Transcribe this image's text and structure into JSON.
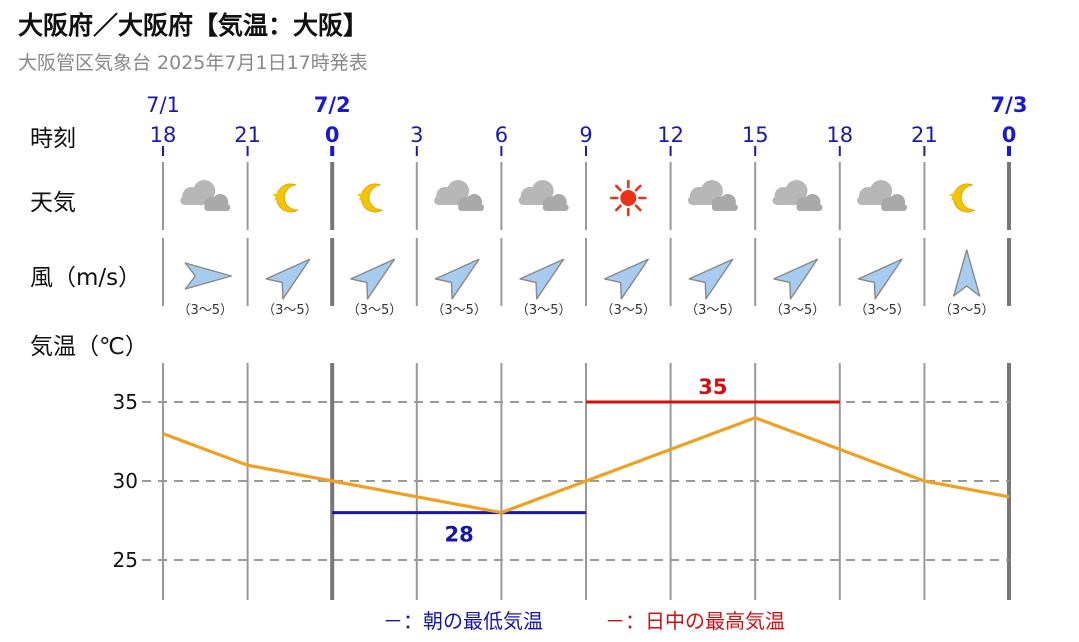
{
  "header": {
    "title": "大阪府／大阪府【気温：大阪】",
    "subtitle": "大阪管区気象台 2025年7月1日17時発表"
  },
  "rows": {
    "time_label": "時刻",
    "weather_label": "天気",
    "wind_label": "風（m/s）",
    "temp_label": "気温（℃）"
  },
  "dates": [
    {
      "label": "7/1",
      "at_hour_index": 0,
      "bold": false
    },
    {
      "label": "7/2",
      "at_hour_index": 2,
      "bold": true
    },
    {
      "label": "7/3",
      "at_hour_index": 10,
      "bold": true
    }
  ],
  "hours": [
    "18",
    "21",
    "0",
    "3",
    "6",
    "9",
    "12",
    "15",
    "18",
    "21",
    "0"
  ],
  "weather": [
    {
      "icon": "cloud-icon"
    },
    {
      "icon": "moon-icon"
    },
    {
      "icon": "moon-icon"
    },
    {
      "icon": "cloud-icon"
    },
    {
      "icon": "cloud-icon"
    },
    {
      "icon": "sun-icon"
    },
    {
      "icon": "cloud-icon"
    },
    {
      "icon": "cloud-icon"
    },
    {
      "icon": "cloud-icon"
    },
    {
      "icon": "moon-icon"
    }
  ],
  "wind": [
    {
      "direction": "西",
      "speed": "（3〜5）"
    },
    {
      "direction": "南西",
      "speed": "（3〜5）"
    },
    {
      "direction": "南西",
      "speed": "（3〜5）"
    },
    {
      "direction": "南西",
      "speed": "（3〜5）"
    },
    {
      "direction": "南西",
      "speed": "（3〜5）"
    },
    {
      "direction": "南西",
      "speed": "（3〜5）"
    },
    {
      "direction": "南西",
      "speed": "（3〜5）"
    },
    {
      "direction": "南西",
      "speed": "（3〜5）"
    },
    {
      "direction": "南西",
      "speed": "（3〜5）"
    },
    {
      "direction": "南",
      "speed": "（3〜5）"
    }
  ],
  "chart_data": {
    "type": "line",
    "x": [
      "18",
      "21",
      "0",
      "3",
      "6",
      "9",
      "12",
      "15",
      "18",
      "21",
      "0"
    ],
    "series": [
      {
        "values": [
          33,
          31,
          30,
          29,
          28,
          30,
          32,
          34,
          32,
          30,
          29
        ],
        "color": "#f0a020"
      }
    ],
    "yticks": [
      "25",
      "30",
      "35"
    ],
    "ylim": [
      22.5,
      37.5
    ],
    "min_temp": {
      "value": 28,
      "label": "28",
      "from_index": 2,
      "to_index": 5,
      "color": "#1515a8"
    },
    "max_temp": {
      "value": 35,
      "label": "35",
      "from_index": 5,
      "to_index": 8,
      "color": "#d01010"
    },
    "grid": true
  },
  "legend": {
    "min_marker": "－",
    "min_text": "：朝の最低気温",
    "max_marker": "－",
    "max_text": "：日中の最高気温",
    "min_color": "#1515a8",
    "max_color": "#d01010"
  }
}
